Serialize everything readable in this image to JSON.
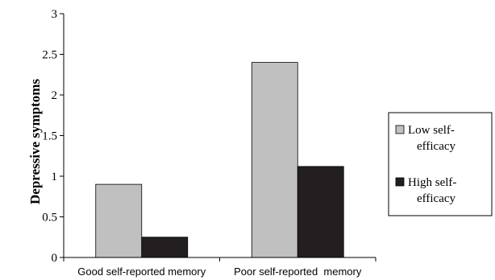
{
  "chart_data": {
    "type": "bar",
    "title": "",
    "xlabel": "",
    "ylabel": "Depressive symptoms",
    "ylim": [
      0,
      3
    ],
    "yticks": [
      "0",
      "0.5",
      "1",
      "1.5",
      "2",
      "2.5",
      "3"
    ],
    "grid": false,
    "legend_position": "right",
    "categories": [
      "Good self-reported memory",
      "Poor self-reported  memory"
    ],
    "series": [
      {
        "name": "Low self-efficacy",
        "legend_lines": [
          "Low self-",
          "efficacy"
        ],
        "values": [
          0.9,
          2.4
        ],
        "color": "#c0c0c0"
      },
      {
        "name": "High self-efficacy",
        "legend_lines": [
          "High self-",
          "efficacy"
        ],
        "values": [
          0.25,
          1.12
        ],
        "color": "#231f20"
      }
    ]
  }
}
